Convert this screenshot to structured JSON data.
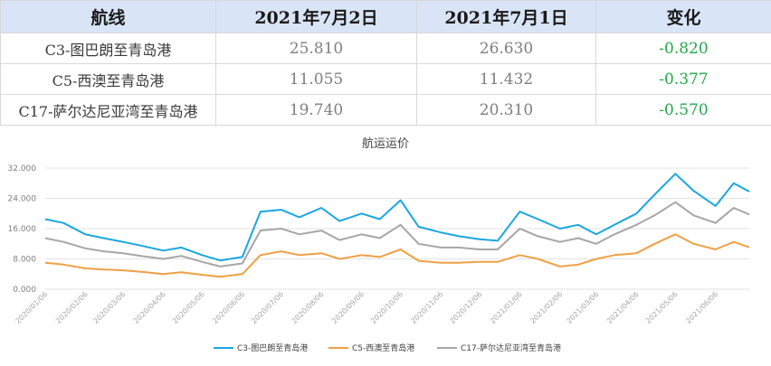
{
  "table": {
    "headers": [
      "航线",
      "2021年7月2日",
      "2021年7月1日",
      "变化"
    ],
    "rows": [
      {
        "route": "C3-图巴朗至青岛港",
        "jul2": "25.810",
        "jul1": "26.630",
        "change": "-0.820"
      },
      {
        "route": "C5-西澳至青岛港",
        "jul2": "11.055",
        "jul1": "11.432",
        "change": "-0.377"
      },
      {
        "route": "C17-萨尔达尼亚湾至青岛港",
        "jul2": "19.740",
        "jul1": "20.310",
        "change": "-0.570"
      }
    ]
  },
  "chart_data": {
    "type": "line",
    "title": "航运运价",
    "ylim": [
      0,
      32
    ],
    "yticks": [
      "0.000",
      "8.000",
      "16.000",
      "24.000",
      "32.000"
    ],
    "xticks": [
      "2020/01/06",
      "2020/02/06",
      "2020/03/06",
      "2020/04/06",
      "2020/05/06",
      "2020/06/06",
      "2020/07/06",
      "2020/08/06",
      "2020/09/06",
      "2020/10/06",
      "2020/11/06",
      "2020/12/06",
      "2021/01/06",
      "2021/02/06",
      "2021/03/06",
      "2021/04/06",
      "2021/05/06",
      "2021/06/06"
    ],
    "grid": "horizontal",
    "legend": "bottom",
    "x": [
      "2020/01/06",
      "2020/01/20",
      "2020/02/06",
      "2020/02/20",
      "2020/03/06",
      "2020/03/20",
      "2020/04/06",
      "2020/04/20",
      "2020/05/06",
      "2020/05/20",
      "2020/06/06",
      "2020/06/20",
      "2020/07/06",
      "2020/07/20",
      "2020/08/06",
      "2020/08/20",
      "2020/09/06",
      "2020/09/20",
      "2020/10/06",
      "2020/10/20",
      "2020/11/06",
      "2020/11/20",
      "2020/12/06",
      "2020/12/20",
      "2021/01/06",
      "2021/01/20",
      "2021/02/06",
      "2021/02/20",
      "2021/03/06",
      "2021/03/20",
      "2021/04/06",
      "2021/04/20",
      "2021/05/06",
      "2021/05/20",
      "2021/06/06",
      "2021/06/20",
      "2021/07/02"
    ],
    "series": [
      {
        "name": "C3-图巴朗至青岛港",
        "color": "#1aa6e0",
        "values": [
          18.5,
          17.5,
          14.5,
          13.5,
          12.5,
          11.5,
          10.2,
          11.0,
          9.0,
          7.6,
          8.5,
          20.5,
          21.0,
          19.0,
          21.5,
          18.0,
          20.0,
          18.5,
          23.5,
          16.5,
          15.0,
          14.0,
          13.2,
          12.8,
          20.5,
          18.5,
          16.0,
          17.0,
          14.5,
          17.0,
          20.0,
          25.0,
          30.5,
          26.0,
          22.0,
          28.0,
          25.8
        ]
      },
      {
        "name": "C5-西澳至青岛港",
        "color": "#f0a045",
        "values": [
          7.0,
          6.5,
          5.5,
          5.2,
          5.0,
          4.6,
          4.0,
          4.5,
          3.8,
          3.3,
          4.0,
          9.0,
          10.0,
          9.0,
          9.5,
          8.0,
          9.0,
          8.5,
          10.5,
          7.5,
          7.0,
          7.0,
          7.2,
          7.2,
          9.0,
          8.0,
          6.0,
          6.5,
          8.0,
          9.0,
          9.5,
          12.0,
          14.5,
          12.0,
          10.5,
          12.5,
          11.055
        ]
      },
      {
        "name": "C17-萨尔达尼亚湾至青岛港",
        "color": "#a6a6a6",
        "values": [
          13.5,
          12.5,
          10.8,
          10.0,
          9.5,
          8.8,
          8.0,
          8.8,
          7.2,
          6.0,
          6.8,
          15.5,
          16.0,
          14.5,
          15.5,
          13.0,
          14.5,
          13.5,
          17.0,
          12.0,
          11.0,
          11.0,
          10.5,
          10.5,
          16.0,
          14.0,
          12.5,
          13.5,
          12.0,
          14.5,
          17.0,
          19.5,
          23.0,
          19.5,
          17.5,
          21.5,
          19.74
        ]
      }
    ]
  }
}
